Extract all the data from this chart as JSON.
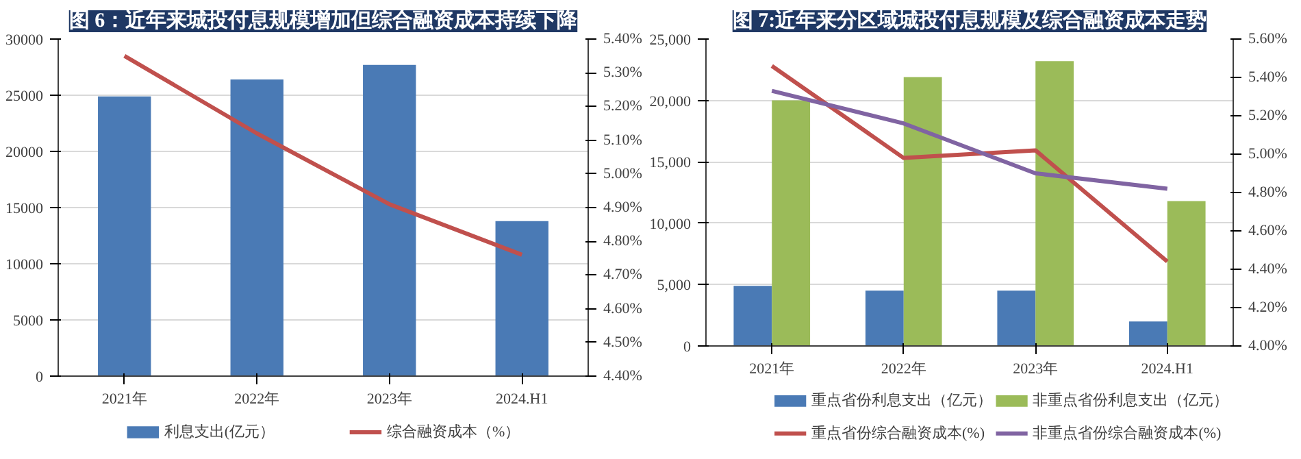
{
  "chart_data": [
    {
      "type": "bar",
      "title": "图 6：近年来城投付息规模增加但综合融资成本持续下降",
      "categories": [
        "2021年",
        "2022年",
        "2023年",
        "2024.H1"
      ],
      "series": [
        {
          "name": "利息支出(亿元）",
          "color": "#4a7ab5",
          "values": [
            24900,
            26400,
            27700,
            13800
          ]
        },
        {
          "name": "综合融资成本（%）",
          "type": "line",
          "axis": "y2",
          "color": "#c0504d",
          "values": [
            5.35,
            5.12,
            4.91,
            4.76
          ]
        }
      ],
      "ylim": [
        0,
        30000
      ],
      "yticks": [
        0,
        5000,
        10000,
        15000,
        20000,
        25000,
        30000
      ],
      "y2lim": [
        4.4,
        5.4
      ],
      "y2ticks": [
        {
          "value": 4.4,
          "label": "4.40%"
        },
        {
          "value": 4.5,
          "label": "4.50%"
        },
        {
          "value": 4.6,
          "label": "4.60%"
        },
        {
          "value": 4.7,
          "label": "4.70%"
        },
        {
          "value": 4.8,
          "label": "4.80%"
        },
        {
          "value": 4.9,
          "label": "4.90%"
        },
        {
          "value": 5.0,
          "label": "5.00%"
        },
        {
          "value": 5.1,
          "label": "5.10%"
        },
        {
          "value": 5.2,
          "label": "5.20%"
        },
        {
          "value": 5.3,
          "label": "5.30%"
        },
        {
          "value": 5.4,
          "label": "5.40%"
        }
      ],
      "grid": "y",
      "legend": "bottom"
    },
    {
      "type": "bar",
      "title": "图 7:近年来分区域城投付息规模及综合融资成本走势",
      "categories": [
        "2021年",
        "2022年",
        "2023年",
        "2024.H1"
      ],
      "series": [
        {
          "name": "重点省份利息支出（亿元）",
          "color": "#4a7ab5",
          "values": [
            4900,
            4500,
            4500,
            2000
          ]
        },
        {
          "name": "非重点省份利息支出（亿元）",
          "color": "#9bbb59",
          "values": [
            20000,
            21900,
            23200,
            11800
          ]
        },
        {
          "name": "重点省份综合融资成本(%)",
          "type": "line",
          "axis": "y2",
          "color": "#c0504d",
          "values": [
            5.46,
            4.98,
            5.02,
            4.44
          ]
        },
        {
          "name": "非重点省份综合融资成本(%)",
          "type": "line",
          "axis": "y2",
          "color": "#8064a2",
          "values": [
            5.33,
            5.16,
            4.9,
            4.82
          ]
        }
      ],
      "ylim": [
        0,
        25000
      ],
      "yticks": [
        {
          "value": 0,
          "label": "0"
        },
        {
          "value": 5000,
          "label": "5,000"
        },
        {
          "value": 10000,
          "label": "10,000"
        },
        {
          "value": 15000,
          "label": "15,000"
        },
        {
          "value": 20000,
          "label": "20,000"
        },
        {
          "value": 25000,
          "label": "25,000"
        }
      ],
      "y2lim": [
        4.0,
        5.6
      ],
      "y2ticks": [
        {
          "value": 4.0,
          "label": "4.00%"
        },
        {
          "value": 4.2,
          "label": "4.20%"
        },
        {
          "value": 4.4,
          "label": "4.40%"
        },
        {
          "value": 4.6,
          "label": "4.60%"
        },
        {
          "value": 4.8,
          "label": "4.80%"
        },
        {
          "value": 5.0,
          "label": "5.00%"
        },
        {
          "value": 5.2,
          "label": "5.20%"
        },
        {
          "value": 5.4,
          "label": "5.40%"
        },
        {
          "value": 5.6,
          "label": "5.60%"
        }
      ],
      "grid": "y",
      "legend": "bottom"
    }
  ]
}
